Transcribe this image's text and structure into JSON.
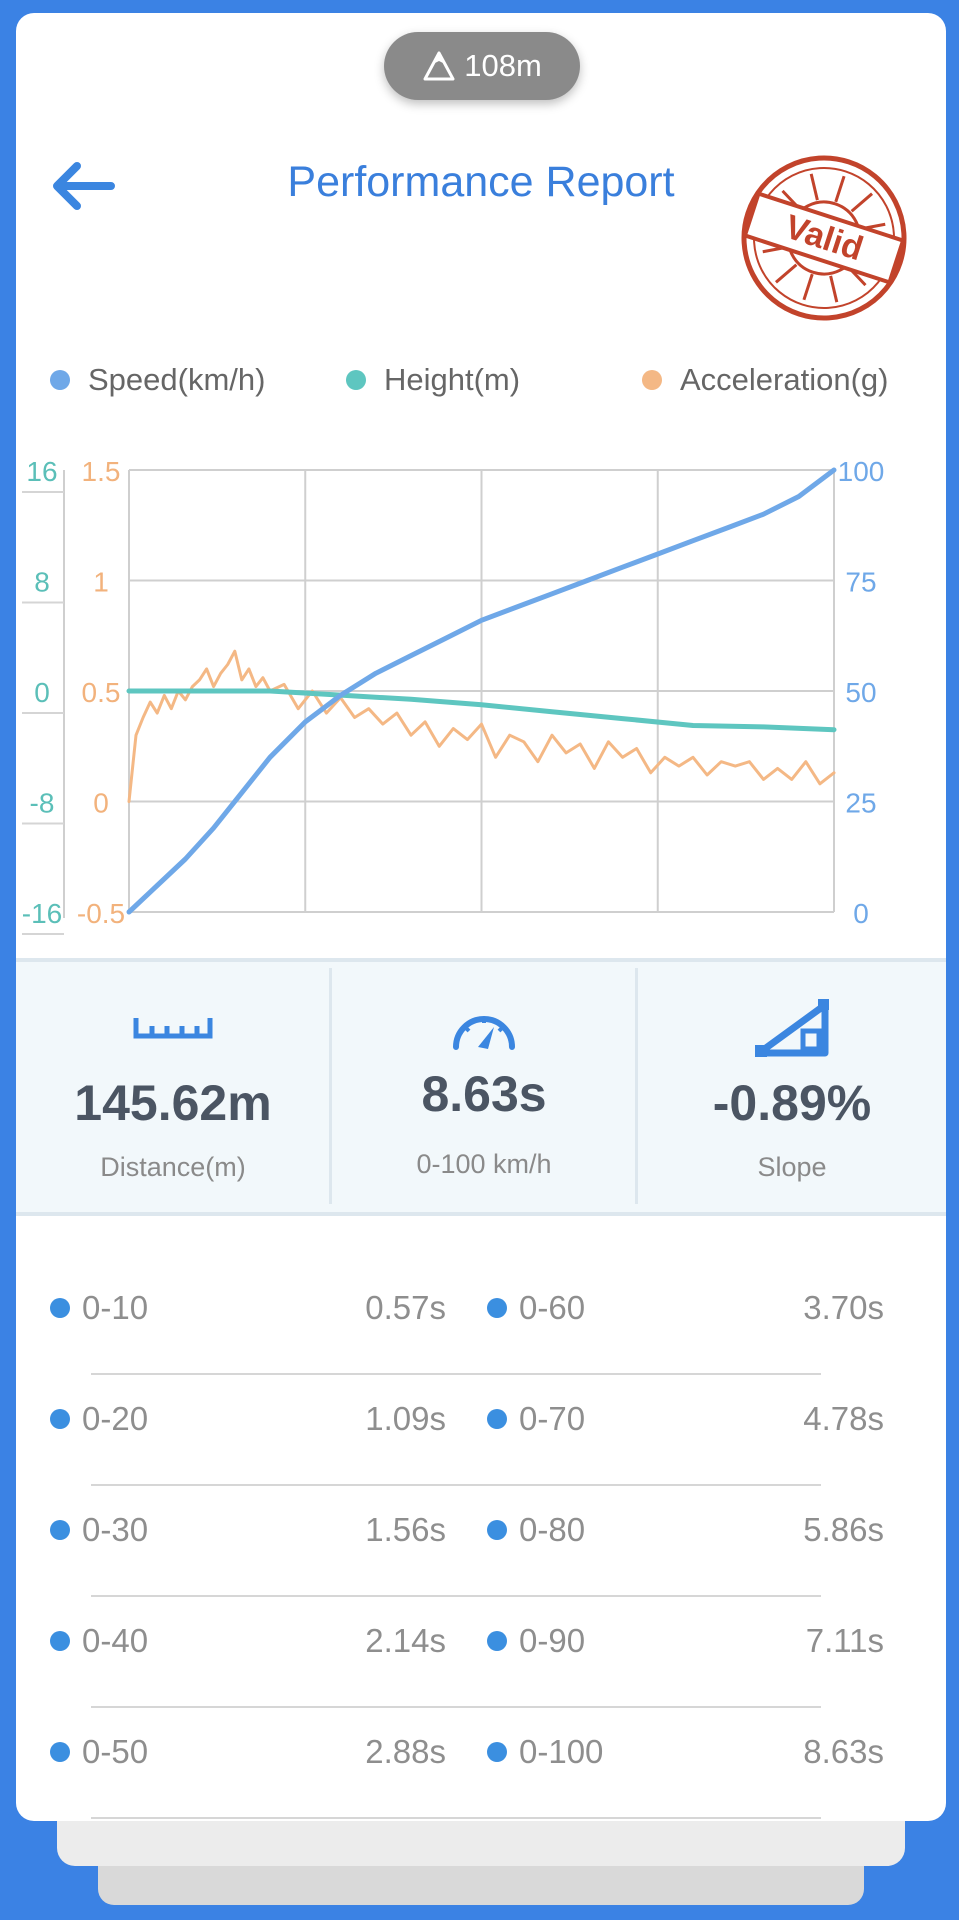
{
  "header": {
    "altitude": "108m",
    "title": "Performance Report",
    "stamp_text": "Valid"
  },
  "legend": [
    {
      "label": "Speed(km/h)",
      "color": "#6fa8e8"
    },
    {
      "label": "Height(m)",
      "color": "#5ec6c0"
    },
    {
      "label": "Acceleration(g)",
      "color": "#f4b885"
    }
  ],
  "chart_data": {
    "type": "line",
    "axes": {
      "height_ticks": [
        "16",
        "8",
        "0",
        "-8",
        "-16"
      ],
      "height_range": [
        -16,
        16
      ],
      "accel_ticks": [
        "1.5",
        "1",
        "0.5",
        "0",
        "-0.5"
      ],
      "accel_range": [
        -0.5,
        1.5
      ],
      "speed_ticks": [
        "100",
        "75",
        "50",
        "25",
        "0"
      ],
      "speed_range": [
        0,
        100
      ]
    },
    "grid": true,
    "x_range": [
      0,
      1
    ],
    "series": [
      {
        "name": "Speed(km/h)",
        "color": "#6fa8e8",
        "x": [
          0,
          0.04,
          0.08,
          0.12,
          0.16,
          0.2,
          0.25,
          0.3,
          0.35,
          0.4,
          0.45,
          0.5,
          0.55,
          0.6,
          0.65,
          0.7,
          0.75,
          0.8,
          0.85,
          0.9,
          0.95,
          1
        ],
        "values": [
          0,
          6,
          12,
          19,
          27,
          35,
          43,
          49,
          54,
          58,
          62,
          66,
          69,
          72,
          75,
          78,
          81,
          84,
          87,
          90,
          94,
          100
        ]
      },
      {
        "name": "Height(m)",
        "color": "#5ec6c0",
        "x": [
          0,
          0.1,
          0.2,
          0.3,
          0.4,
          0.5,
          0.6,
          0.7,
          0.8,
          0.9,
          1
        ],
        "values": [
          0,
          0,
          0,
          -0.3,
          -0.6,
          -1.0,
          -1.5,
          -2.0,
          -2.5,
          -2.6,
          -2.8
        ]
      },
      {
        "name": "Acceleration(g)",
        "color": "#f4b885",
        "x": [
          0,
          0.01,
          0.02,
          0.03,
          0.04,
          0.05,
          0.06,
          0.07,
          0.08,
          0.09,
          0.1,
          0.11,
          0.12,
          0.13,
          0.14,
          0.15,
          0.16,
          0.17,
          0.18,
          0.19,
          0.2,
          0.22,
          0.24,
          0.26,
          0.28,
          0.3,
          0.32,
          0.34,
          0.36,
          0.38,
          0.4,
          0.42,
          0.44,
          0.46,
          0.48,
          0.5,
          0.52,
          0.54,
          0.56,
          0.58,
          0.6,
          0.62,
          0.64,
          0.66,
          0.68,
          0.7,
          0.72,
          0.74,
          0.76,
          0.78,
          0.8,
          0.82,
          0.84,
          0.86,
          0.88,
          0.9,
          0.92,
          0.94,
          0.96,
          0.98,
          1
        ],
        "values": [
          0.0,
          0.3,
          0.38,
          0.45,
          0.4,
          0.48,
          0.42,
          0.5,
          0.46,
          0.52,
          0.55,
          0.6,
          0.52,
          0.58,
          0.62,
          0.68,
          0.55,
          0.6,
          0.52,
          0.56,
          0.5,
          0.53,
          0.42,
          0.5,
          0.4,
          0.47,
          0.38,
          0.42,
          0.35,
          0.4,
          0.3,
          0.36,
          0.25,
          0.33,
          0.28,
          0.35,
          0.2,
          0.3,
          0.27,
          0.18,
          0.3,
          0.22,
          0.26,
          0.15,
          0.27,
          0.2,
          0.24,
          0.13,
          0.2,
          0.16,
          0.2,
          0.12,
          0.18,
          0.16,
          0.18,
          0.1,
          0.15,
          0.1,
          0.18,
          0.08,
          0.13
        ]
      }
    ]
  },
  "stats": [
    {
      "value": "145.62m",
      "label": "Distance(m)",
      "icon": "ruler-icon"
    },
    {
      "value": "8.63s",
      "label": "0-100 km/h",
      "icon": "speedometer-icon"
    },
    {
      "value": "-0.89%",
      "label": "Slope",
      "icon": "slope-icon"
    }
  ],
  "times": [
    {
      "left": {
        "label": "0-10",
        "value": "0.57s"
      },
      "right": {
        "label": "0-60",
        "value": "3.70s"
      }
    },
    {
      "left": {
        "label": "0-20",
        "value": "1.09s"
      },
      "right": {
        "label": "0-70",
        "value": "4.78s"
      }
    },
    {
      "left": {
        "label": "0-30",
        "value": "1.56s"
      },
      "right": {
        "label": "0-80",
        "value": "5.86s"
      }
    },
    {
      "left": {
        "label": "0-40",
        "value": "2.14s"
      },
      "right": {
        "label": "0-90",
        "value": "7.11s"
      }
    },
    {
      "left": {
        "label": "0-50",
        "value": "2.88s"
      },
      "right": {
        "label": "0-100",
        "value": "8.63s"
      }
    }
  ]
}
